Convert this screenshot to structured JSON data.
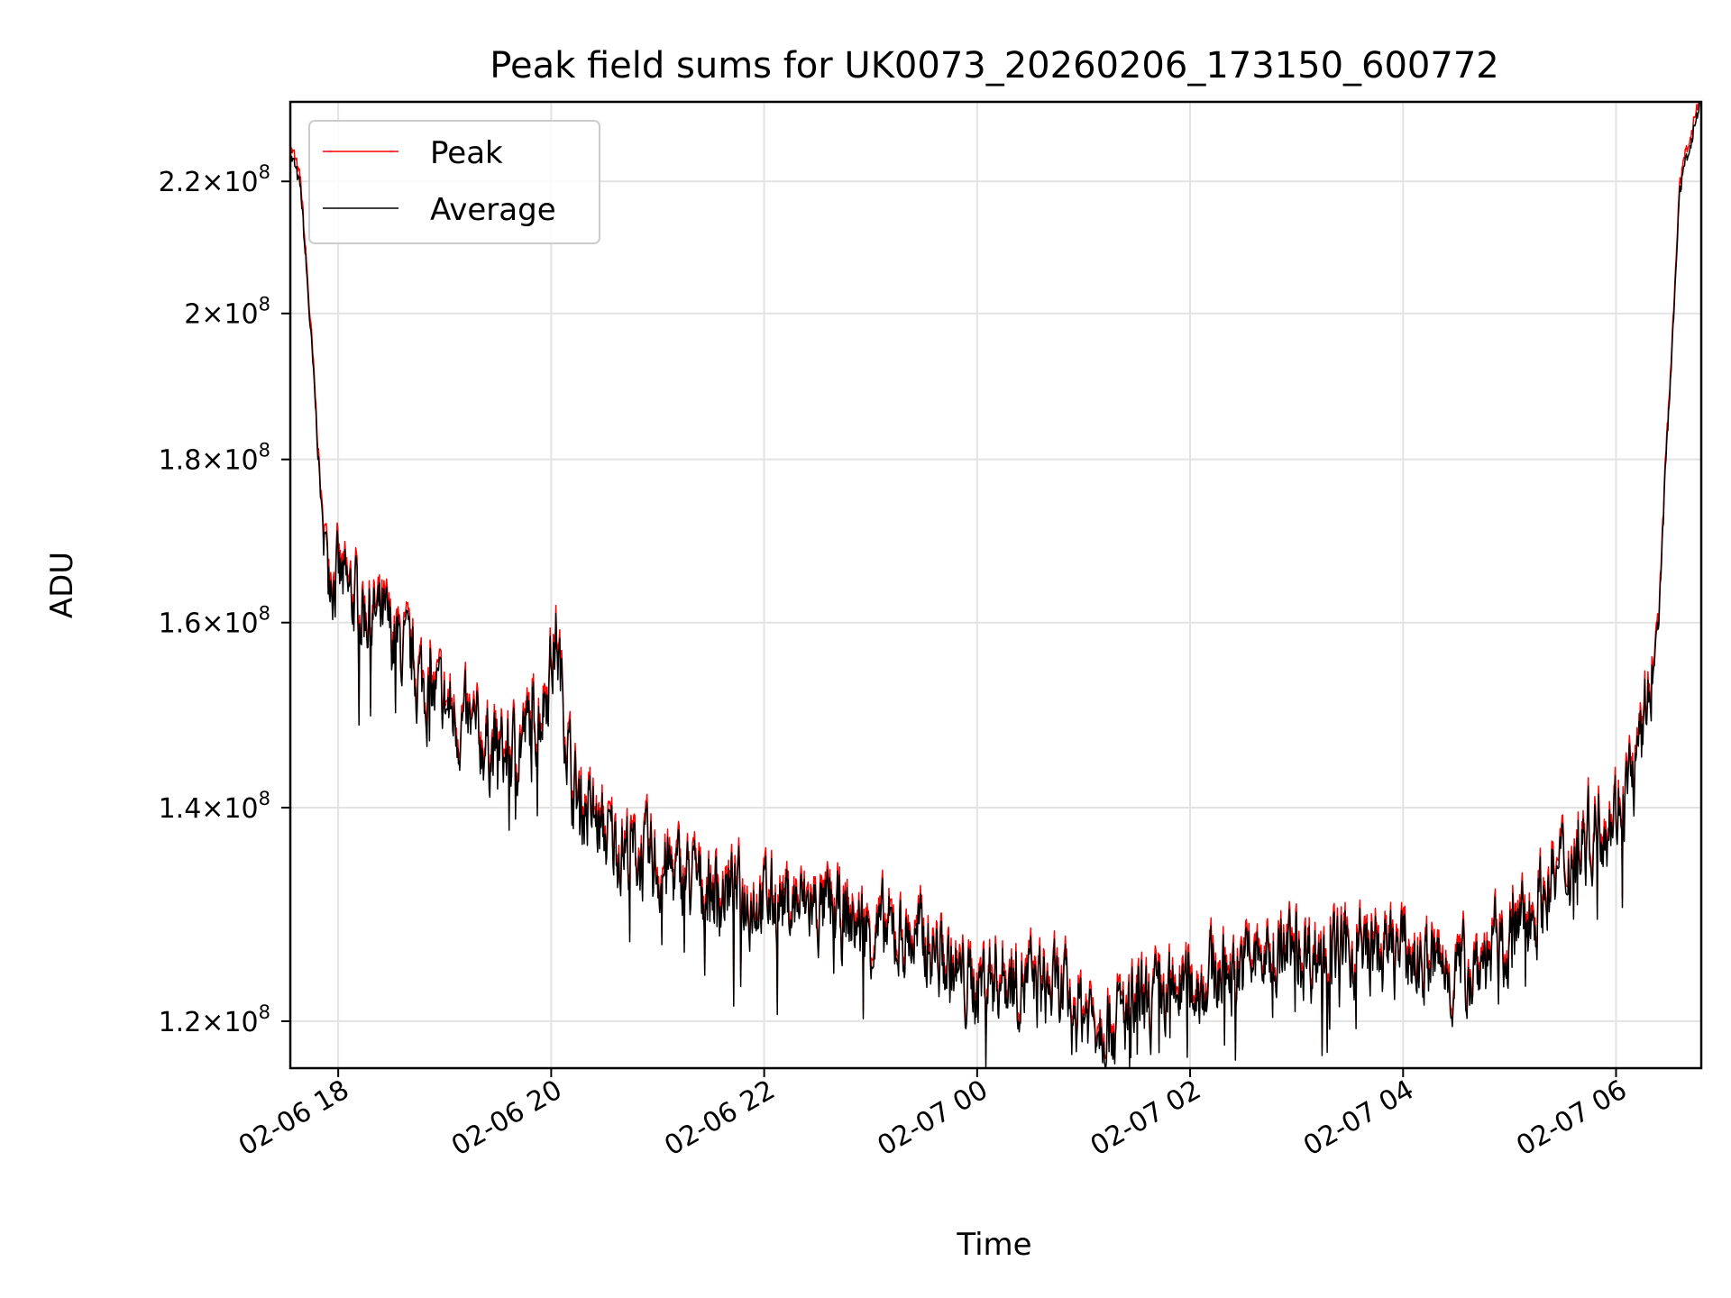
{
  "chart_data": {
    "type": "line",
    "title": "Peak field sums for UK0073_20260206_173150_600772",
    "xlabel": "Time",
    "ylabel": "ADU",
    "x_range_hours": [
      17.55,
      30.8
    ],
    "x_ticks": [
      {
        "hour": 18,
        "label": "02-06 18"
      },
      {
        "hour": 20,
        "label": "02-06 20"
      },
      {
        "hour": 22,
        "label": "02-06 22"
      },
      {
        "hour": 24,
        "label": "02-07 00"
      },
      {
        "hour": 26,
        "label": "02-07 02"
      },
      {
        "hour": 28,
        "label": "02-07 04"
      },
      {
        "hour": 30,
        "label": "02-07 06"
      }
    ],
    "y_scale": "log",
    "ylim": [
      116000000,
      233000000
    ],
    "y_ticks": [
      {
        "value": 120000000,
        "mantissa": "1.2",
        "exponent": "8"
      },
      {
        "value": 140000000,
        "mantissa": "1.4",
        "exponent": "8"
      },
      {
        "value": 160000000,
        "mantissa": "1.6",
        "exponent": "8"
      },
      {
        "value": 180000000,
        "mantissa": "1.8",
        "exponent": "8"
      },
      {
        "value": 200000000,
        "mantissa": "2",
        "exponent": "8"
      },
      {
        "value": 220000000,
        "mantissa": "2.2",
        "exponent": "8"
      }
    ],
    "grid": true,
    "legend": {
      "placement": "upper-left"
    },
    "series": [
      {
        "name": "Peak",
        "color": "#ff0000",
        "offset_fraction": 0.006
      },
      {
        "name": "Average",
        "color": "#000000"
      }
    ],
    "trend": {
      "x_hours": [
        17.55,
        17.65,
        17.75,
        17.85,
        17.95,
        18.1,
        18.4,
        18.8,
        19.2,
        19.6,
        19.9,
        20.05,
        20.2,
        20.5,
        21.0,
        21.5,
        22.0,
        22.5,
        23.0,
        23.5,
        23.9,
        24.2,
        24.6,
        25.0,
        25.3,
        25.6,
        26.0,
        26.5,
        27.0,
        27.5,
        28.0,
        28.5,
        29.0,
        29.5,
        29.8,
        30.0,
        30.2,
        30.3,
        30.4,
        30.5,
        30.6,
        30.7,
        30.8
      ],
      "values_millions": [
        225,
        218,
        195,
        172,
        166,
        163,
        160,
        153,
        148,
        145,
        150,
        158,
        142,
        137,
        134,
        132,
        131,
        130,
        128,
        127,
        123,
        124,
        123,
        121,
        120,
        121,
        123,
        125,
        126,
        126,
        126,
        124,
        127,
        134,
        138,
        140,
        144,
        151,
        160,
        188,
        218,
        227,
        233
      ],
      "noise_fraction": 0.024
    }
  }
}
